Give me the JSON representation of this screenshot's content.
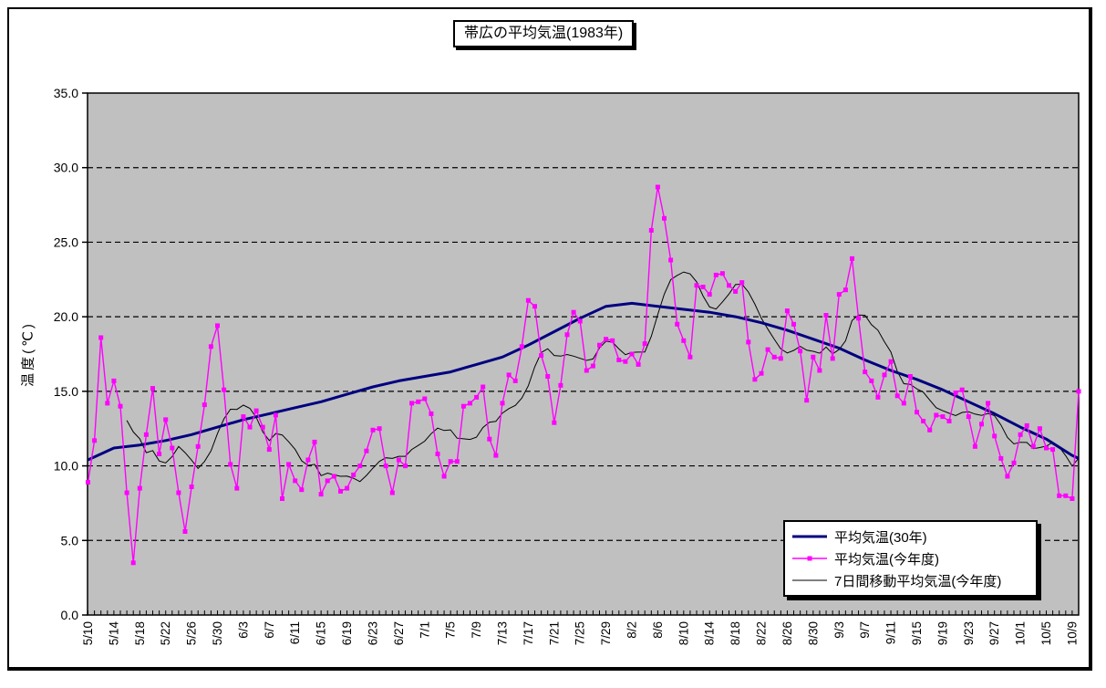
{
  "page": {
    "background": "#FFFFFF",
    "frame_border_color": "#000000"
  },
  "title_box": {
    "text": "帯広の平均気温(1983年)"
  },
  "chart_data": {
    "type": "line",
    "title": "帯広の平均気温(1983年)",
    "xlabel": "",
    "ylabel": "温度(℃)",
    "ylim": [
      0.0,
      35.0
    ],
    "ytick_step": 5.0,
    "y_tick_labels": [
      "0.0",
      "5.0",
      "10.0",
      "15.0",
      "20.0",
      "25.0",
      "30.0",
      "35.0"
    ],
    "grid": "horizontal-dashed",
    "plot_background": "#C0C0C0",
    "legend_position": "inside-lower-right",
    "x_start": "5/10",
    "x_end": "10/10",
    "n_days": 154,
    "x_tick_every_days": 4,
    "x_tick_labels": [
      "5/10",
      "5/14",
      "5/18",
      "5/22",
      "5/26",
      "5/30",
      "6/3",
      "6/7",
      "6/11",
      "6/15",
      "6/19",
      "6/23",
      "6/27",
      "7/1",
      "7/5",
      "7/9",
      "7/13",
      "7/17",
      "7/21",
      "7/25",
      "7/29",
      "8/2",
      "8/6",
      "8/10",
      "8/14",
      "8/18",
      "8/22",
      "8/26",
      "8/30",
      "9/3",
      "9/7",
      "9/11",
      "9/15",
      "9/19",
      "9/23",
      "9/27",
      "10/1",
      "10/5",
      "10/9"
    ],
    "series": [
      {
        "name": "平均気温(30年)",
        "color": "#000080",
        "line_width": 3,
        "marker": "none",
        "sample_days": [
          0,
          4,
          8,
          12,
          16,
          20,
          24,
          28,
          32,
          36,
          40,
          44,
          48,
          52,
          56,
          60,
          64,
          68,
          72,
          76,
          80,
          84,
          88,
          92,
          96,
          100,
          104,
          108,
          112,
          116,
          120,
          124,
          128,
          132,
          136,
          140,
          144,
          148,
          152,
          153
        ],
        "values": [
          10.4,
          11.2,
          11.4,
          11.7,
          12.1,
          12.6,
          13.1,
          13.5,
          13.9,
          14.3,
          14.8,
          15.3,
          15.7,
          16.0,
          16.3,
          16.8,
          17.3,
          18.1,
          19.0,
          19.9,
          20.7,
          20.9,
          20.7,
          20.5,
          20.3,
          20.0,
          19.6,
          19.1,
          18.5,
          17.9,
          17.1,
          16.4,
          15.8,
          15.1,
          14.3,
          13.5,
          12.6,
          11.8,
          10.7,
          10.5
        ]
      },
      {
        "name": "平均気温(今年度)",
        "color": "#FF00FF",
        "line_width": 1.4,
        "marker": "square",
        "marker_size": 5,
        "values": [
          8.9,
          11.7,
          18.6,
          14.2,
          15.7,
          14.0,
          8.2,
          3.5,
          8.5,
          12.1,
          15.2,
          10.8,
          13.1,
          11.2,
          8.2,
          5.6,
          8.6,
          11.3,
          14.1,
          18.0,
          19.4,
          15.1,
          10.1,
          8.5,
          13.3,
          12.6,
          13.7,
          12.6,
          11.1,
          13.4,
          7.8,
          10.1,
          9.0,
          8.4,
          10.4,
          11.6,
          8.1,
          9.0,
          9.3,
          8.3,
          8.5,
          9.4,
          10.0,
          11.0,
          12.4,
          12.5,
          10.0,
          8.2,
          10.4,
          10.0,
          14.2,
          14.3,
          14.5,
          13.5,
          10.8,
          9.3,
          10.3,
          10.3,
          14.0,
          14.2,
          14.6,
          15.3,
          11.8,
          10.7,
          14.2,
          16.1,
          15.7,
          18.0,
          21.1,
          20.7,
          17.4,
          16.0,
          12.9,
          15.4,
          18.8,
          20.3,
          19.7,
          16.4,
          16.7,
          18.1,
          18.5,
          18.4,
          17.1,
          17.0,
          17.5,
          16.8,
          18.2,
          25.8,
          28.7,
          26.6,
          23.8,
          19.5,
          18.4,
          17.3,
          22.1,
          22.0,
          21.5,
          22.8,
          22.9,
          22.1,
          21.7,
          22.3,
          18.3,
          15.8,
          16.2,
          17.8,
          17.3,
          17.2,
          20.4,
          19.5,
          17.7,
          14.4,
          17.3,
          16.4,
          20.1,
          17.2,
          21.5,
          21.8,
          23.9,
          19.9,
          16.3,
          15.7,
          14.6,
          16.1,
          17.0,
          14.7,
          14.2,
          16.0,
          13.6,
          13.0,
          12.4,
          13.4,
          13.3,
          13.0,
          14.9,
          15.1,
          13.3,
          11.3,
          12.8,
          14.2,
          12.0,
          10.5,
          9.3,
          10.2,
          12.1,
          12.7,
          11.3,
          12.5,
          11.2,
          11.1,
          8.0,
          8.0,
          7.8,
          15.0
        ]
      },
      {
        "name": "7日間移動平均気温(今年度)",
        "color": "#000000",
        "line_width": 1,
        "marker": "none",
        "derived_from": "平均気温(今年度)",
        "derivation": "7-day trailing moving average, first point plotted on day 7 of data (5/16)"
      }
    ]
  }
}
